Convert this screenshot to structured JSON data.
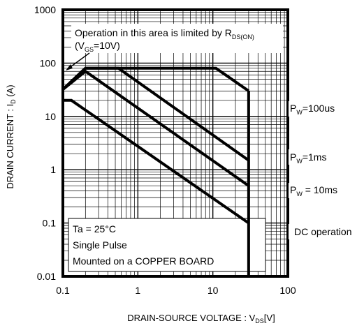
{
  "chart_data": {
    "type": "line",
    "xscale": "log",
    "yscale": "log",
    "xlim": [
      0.1,
      100
    ],
    "ylim": [
      0.01,
      1000
    ],
    "grid": true,
    "x_tick_labels": [
      "0.1",
      "1",
      "10",
      "100"
    ],
    "y_tick_labels": [
      "1000",
      "100",
      "10",
      "1",
      "0.1",
      "0.01"
    ],
    "xlabel": {
      "main": "DRAIN-SOURCE VOLTAGE : V",
      "sub": "DS",
      "unit": "[V]"
    },
    "ylabel": {
      "main": "DRAIN CURRENT : I",
      "sub": "D",
      "unit": " (A)"
    },
    "series": [
      {
        "name": "PW=100us",
        "x": [
          0.1,
          0.2,
          11,
          30
        ],
        "y": [
          32,
          80,
          80,
          30
        ]
      },
      {
        "name": "PW=1ms",
        "x": [
          0.1,
          0.2,
          0.55,
          30
        ],
        "y": [
          32,
          80,
          80,
          1.5
        ]
      },
      {
        "name": "PW = 10ms",
        "x": [
          0.1,
          0.2,
          30
        ],
        "y": [
          32,
          70,
          0.5
        ]
      },
      {
        "name": "DC operation",
        "x": [
          0.1,
          0.13,
          30
        ],
        "y": [
          20,
          20,
          0.1
        ]
      }
    ],
    "rds_limit_line": {
      "x": [
        0.1,
        0.2
      ],
      "y": [
        32,
        80
      ]
    },
    "vertical_limit_x": 30,
    "annotations": {
      "rds_note": {
        "text": "Operation in this area is limited by R",
        "sub": "DS(ON)"
      },
      "vgs_note": {
        "pre": "(V",
        "sub": "GS",
        "post": "=10V)"
      },
      "pw100us": {
        "pre": "P",
        "sub": "W",
        "post": "=100us"
      },
      "pw1ms": {
        "pre": "P",
        "sub": "W",
        "post": "=1ms"
      },
      "pw10ms": {
        "pre": "P",
        "sub": "W",
        "post": " = 10ms"
      },
      "dc": "DC operation"
    },
    "conditions": [
      "Ta = 25°C",
      "Single Pulse",
      "Mounted on a COPPER BOARD"
    ]
  }
}
